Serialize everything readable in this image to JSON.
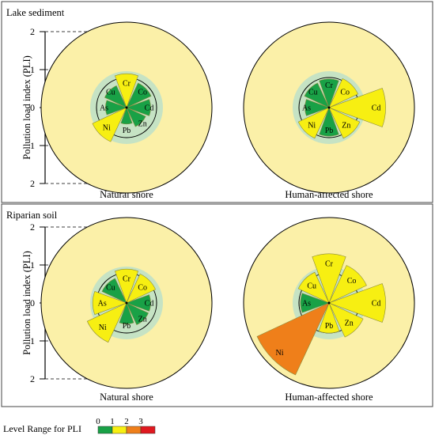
{
  "chart_data": {
    "type": "rose",
    "y_axis_label": "Pollution load index (PLI)",
    "y_ticks": [
      "2",
      "1",
      "0",
      "1",
      "2"
    ],
    "elements": [
      "Cr",
      "Co",
      "Cd",
      "Zn",
      "Pb",
      "Ni",
      "As",
      "Cu"
    ],
    "panels": [
      {
        "title": "Lake sediment",
        "charts": [
          {
            "label": "Natural shore",
            "values": {
              "Cr": 1.1,
              "Co": 0.9,
              "Cd": 0.8,
              "Zn": 0.7,
              "Pb": 0.55,
              "Ni": 1.2,
              "As": 0.7,
              "Cu": 0.8
            }
          },
          {
            "label": "Human-affected shore",
            "values": {
              "Cr": 0.95,
              "Co": 1.05,
              "Cd": 1.7,
              "Zn": 1.1,
              "Pb": 0.95,
              "Ni": 1.1,
              "As": 0.8,
              "Cu": 0.9
            }
          }
        ]
      },
      {
        "title": "Riparian soil",
        "charts": [
          {
            "label": "Natural shore",
            "values": {
              "Cr": 1.1,
              "Co": 1.05,
              "Cd": 0.8,
              "Zn": 0.8,
              "Pb": 0.7,
              "Ni": 1.35,
              "As": 1.1,
              "Cu": 0.9
            }
          },
          {
            "label": "Human-affected shore",
            "values": {
              "Cr": 1.5,
              "Co": 1.3,
              "Cd": 1.7,
              "Zn": 1.2,
              "Pb": 1.0,
              "Ni": 2.3,
              "As": 0.95,
              "Cu": 1.1
            }
          }
        ]
      }
    ],
    "legend": {
      "title": "Level Range for PLI",
      "ticks": [
        "0",
        "1",
        "2",
        "3"
      ],
      "levels": [
        {
          "min": 0,
          "max": 1,
          "color": "#19a146"
        },
        {
          "min": 1,
          "max": 2,
          "color": "#f7ef12"
        },
        {
          "min": 2,
          "max": 3,
          "color": "#ef7f1a"
        },
        {
          "min": 3,
          "max": 4,
          "color": "#e0181f"
        }
      ]
    },
    "colors": {
      "outer_disc": "#fbf0a8",
      "inner_disc": "#c6e3c4",
      "petal_edge": "#8a8a3a"
    }
  }
}
